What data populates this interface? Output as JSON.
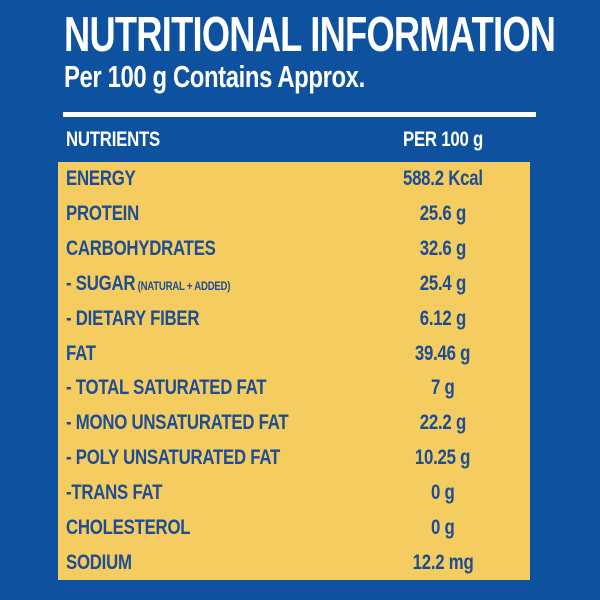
{
  "header": {
    "title": "NUTRITIONAL INFORMATION",
    "subtitle": "Per 100 g Contains Approx."
  },
  "table": {
    "columns": {
      "nutrients": "NUTRIENTS",
      "per_100_g": "PER 100 g"
    },
    "rows": [
      {
        "label": "ENERGY",
        "value": "588.2 Kcal"
      },
      {
        "label": "PROTEIN",
        "value": "25.6 g"
      },
      {
        "label": "CARBOHYDRATES",
        "value": "32.6 g"
      },
      {
        "label": "- SUGAR",
        "note": "(NATURAL + ADDED)",
        "value": "25.4 g"
      },
      {
        "label": "- DIETARY FIBER",
        "value": "6.12 g"
      },
      {
        "label": "FAT",
        "value": "39.46 g"
      },
      {
        "label": "- TOTAL SATURATED FAT",
        "value": "7 g"
      },
      {
        "label": "- MONO UNSATURATED FAT",
        "value": "22.2 g"
      },
      {
        "label": "- POLY UNSATURATED FAT",
        "value": "10.25 g"
      },
      {
        "label": "-TRANS FAT",
        "value": "0 g"
      },
      {
        "label": "CHOLESTEROL",
        "value": "0 g"
      },
      {
        "label": "SODIUM",
        "value": "12.2 mg"
      }
    ]
  },
  "colors": {
    "background_blue": "#0e519f",
    "panel_yellow": "#f5cc5f",
    "text_blue": "#1d4d94",
    "text_white": "#ffffff"
  }
}
